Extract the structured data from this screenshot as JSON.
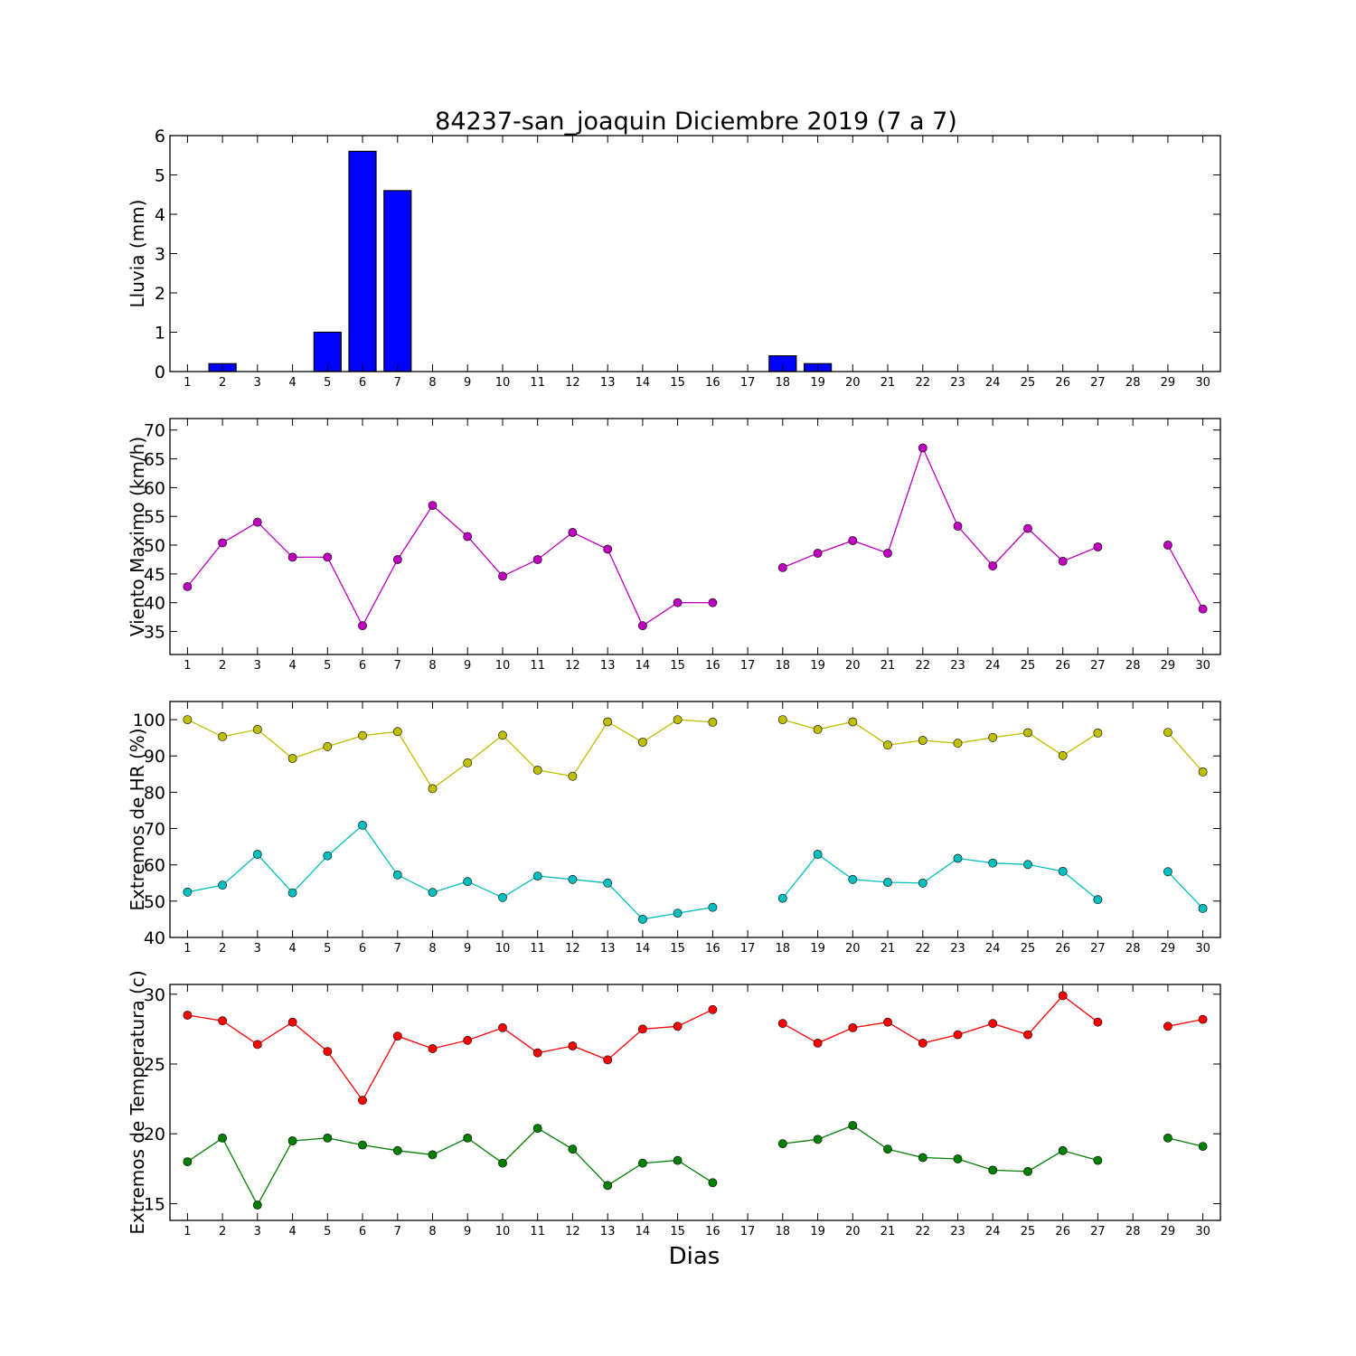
{
  "chart_data": {
    "title": "84237-san_joaquin Diciembre 2019  (7 a 7)",
    "xlabel": "Dias",
    "x_tick_labels": [
      "1",
      "2",
      "3",
      "4",
      "5",
      "6",
      "7",
      "8",
      "9",
      "10",
      "11",
      "12",
      "13",
      "14",
      "15",
      "16",
      "17",
      "18",
      "19",
      "20",
      "21",
      "22",
      "23",
      "24",
      "25",
      "26",
      "27",
      "28",
      "29",
      "30"
    ],
    "panels": [
      {
        "type": "bar",
        "ylabel": "Lluvia (mm)",
        "ylim": [
          0,
          6
        ],
        "yticks": [
          0,
          1,
          2,
          3,
          4,
          5,
          6
        ],
        "series": [
          {
            "color": "#0000ff",
            "x": [
              1,
              2,
              3,
              4,
              5,
              6,
              7,
              8,
              9,
              10,
              11,
              12,
              13,
              14,
              15,
              16,
              18,
              19,
              20,
              21,
              22,
              23,
              24,
              25,
              26,
              27,
              29,
              30
            ],
            "values": [
              0,
              0.2,
              0,
              0,
              1.0,
              5.6,
              4.6,
              0,
              0,
              0,
              0,
              0,
              0,
              0,
              0,
              0,
              0.4,
              0.2,
              0,
              0,
              0,
              0,
              0,
              0,
              0,
              0,
              0,
              0
            ]
          }
        ]
      },
      {
        "type": "line",
        "ylabel": "Viento Maximo (km/h)",
        "ylim": [
          31,
          72
        ],
        "yticks": [
          35,
          40,
          45,
          50,
          55,
          60,
          65,
          70
        ],
        "series": [
          {
            "color": "#bf00bf",
            "x": [
              1,
              2,
              3,
              4,
              5,
              6,
              7,
              8,
              9,
              10,
              11,
              12,
              13,
              14,
              15,
              16,
              17,
              18,
              19,
              20,
              21,
              22,
              23,
              24,
              25,
              26,
              27,
              28,
              29,
              30
            ],
            "values": [
              42.8,
              50.4,
              54.0,
              47.9,
              47.9,
              36.0,
              47.5,
              56.9,
              51.5,
              44.6,
              47.5,
              52.2,
              49.3,
              36.0,
              40.0,
              40.0,
              null,
              46.1,
              48.6,
              50.8,
              48.6,
              66.9,
              53.3,
              46.4,
              52.9,
              47.2,
              49.7,
              null,
              50.0,
              38.9
            ]
          }
        ]
      },
      {
        "type": "line",
        "ylabel": "Extremos de HR (%)",
        "ylim": [
          40,
          105
        ],
        "yticks": [
          40,
          50,
          60,
          70,
          80,
          90,
          100
        ],
        "series": [
          {
            "color": "#bfbf00",
            "x": [
              1,
              2,
              3,
              4,
              5,
              6,
              7,
              8,
              9,
              10,
              11,
              12,
              13,
              14,
              15,
              16,
              17,
              18,
              19,
              20,
              21,
              22,
              23,
              24,
              25,
              26,
              27,
              28,
              29,
              30
            ],
            "values": [
              100,
              95.3,
              97.3,
              89.3,
              92.6,
              95.6,
              96.7,
              81.0,
              88.1,
              95.7,
              86.1,
              84.4,
              99.4,
              93.8,
              100,
              99.3,
              null,
              100,
              97.3,
              99.4,
              93.0,
              94.3,
              93.5,
              95.1,
              96.4,
              90.1,
              96.3,
              null,
              96.5,
              85.6
            ]
          },
          {
            "color": "#00bfbf",
            "x": [
              1,
              2,
              3,
              4,
              5,
              6,
              7,
              8,
              9,
              10,
              11,
              12,
              13,
              14,
              15,
              16,
              17,
              18,
              19,
              20,
              21,
              22,
              23,
              24,
              25,
              26,
              27,
              28,
              29,
              30
            ],
            "values": [
              52.5,
              54.4,
              62.9,
              52.3,
              62.5,
              70.9,
              57.2,
              52.4,
              55.4,
              51.0,
              56.9,
              56.0,
              55.0,
              45.0,
              46.7,
              48.3,
              null,
              50.8,
              62.9,
              56.0,
              55.2,
              55.0,
              61.8,
              60.5,
              60.1,
              58.2,
              50.4,
              null,
              58.1,
              48.0
            ]
          }
        ]
      },
      {
        "type": "line",
        "ylabel": "Extremos de Temperatura (c)",
        "ylim": [
          13.8,
          30.7
        ],
        "yticks": [
          15,
          20,
          25,
          30
        ],
        "series": [
          {
            "color": "#ff0000",
            "x": [
              1,
              2,
              3,
              4,
              5,
              6,
              7,
              8,
              9,
              10,
              11,
              12,
              13,
              14,
              15,
              16,
              17,
              18,
              19,
              20,
              21,
              22,
              23,
              24,
              25,
              26,
              27,
              28,
              29,
              30
            ],
            "values": [
              28.5,
              28.1,
              26.4,
              28.0,
              25.9,
              22.4,
              27.0,
              26.1,
              26.7,
              27.6,
              25.8,
              26.3,
              25.3,
              27.5,
              27.7,
              28.9,
              null,
              27.9,
              26.5,
              27.6,
              28.0,
              26.5,
              27.1,
              27.9,
              27.1,
              29.9,
              28.0,
              null,
              27.7,
              28.2
            ]
          },
          {
            "color": "#007f00",
            "x": [
              1,
              2,
              3,
              4,
              5,
              6,
              7,
              8,
              9,
              10,
              11,
              12,
              13,
              14,
              15,
              16,
              17,
              18,
              19,
              20,
              21,
              22,
              23,
              24,
              25,
              26,
              27,
              28,
              29,
              30
            ],
            "values": [
              18.0,
              19.7,
              14.9,
              19.5,
              19.7,
              19.2,
              18.8,
              18.5,
              19.7,
              17.9,
              20.4,
              18.9,
              16.3,
              17.9,
              18.1,
              16.5,
              null,
              19.3,
              19.6,
              20.6,
              18.9,
              18.3,
              18.2,
              17.4,
              17.3,
              18.8,
              18.1,
              null,
              19.7,
              19.1
            ]
          }
        ]
      }
    ]
  }
}
